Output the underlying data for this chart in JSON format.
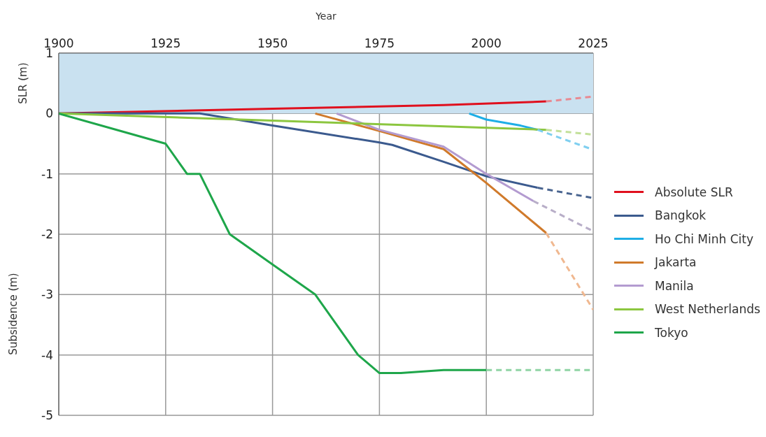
{
  "chart_data": {
    "type": "line",
    "xlabel": "Year",
    "ylabel": "Subsidence (m)",
    "xlim": [
      1900,
      2025
    ],
    "xticks": [
      1900,
      1925,
      1950,
      1975,
      2000,
      2025
    ],
    "ylim": [
      -5,
      1
    ],
    "yticks": [
      -5,
      -4,
      -3,
      -2,
      -1,
      0,
      1
    ],
    "grid": true,
    "legend": "right",
    "line_style": "solid",
    "bands": [
      {
        "axis": "y",
        "from": 0,
        "to": 1,
        "label": "SLR (m)",
        "color": "#c9e1f0"
      }
    ],
    "series": [
      {
        "name": "Absolute SLR",
        "color": "#e0101e",
        "x": [
          1900,
          1950,
          1990,
          2014
        ],
        "values": [
          0,
          0.08,
          0.14,
          0.2
        ]
      },
      {
        "name": "Bangkok",
        "color": "#3b5a8e",
        "x": [
          1900,
          1933,
          1950,
          1975,
          1978,
          1990,
          2000,
          2012
        ],
        "values": [
          0,
          0,
          -0.2,
          -0.48,
          -0.52,
          -0.8,
          -1.04,
          -1.23
        ]
      },
      {
        "name": "Ho Chi Minh City",
        "color": "#1eaee6",
        "x": [
          1996,
          2000,
          2008,
          2012
        ],
        "values": [
          0,
          -0.1,
          -0.2,
          -0.27
        ]
      },
      {
        "name": "Jakarta",
        "color": "#d07a2b",
        "x": [
          1960,
          1975,
          1990,
          2000,
          2014
        ],
        "values": [
          0,
          -0.29,
          -0.59,
          -1.15,
          -1.98
        ]
      },
      {
        "name": "Manila",
        "color": "#b39bd0",
        "x": [
          1965,
          1975,
          1990,
          2000,
          2011
        ],
        "values": [
          0,
          -0.27,
          -0.55,
          -1.0,
          -1.45
        ]
      },
      {
        "name": "West Netherlands",
        "color": "#8cc63f",
        "x": [
          1900,
          2014
        ],
        "values": [
          0,
          -0.27
        ]
      },
      {
        "name": "Tokyo",
        "color": "#1ea64a",
        "x": [
          1900,
          1915,
          1925,
          1930,
          1933,
          1940,
          1950,
          1960,
          1970,
          1975,
          1980,
          1990,
          2000
        ],
        "values": [
          0,
          -0.3,
          -0.5,
          -1.0,
          -1.0,
          -2.0,
          -2.5,
          -3.0,
          -4.0,
          -4.3,
          -4.3,
          -4.25,
          -4.25
        ]
      },
      {
        "color": "#e88a92",
        "line_style": "dashed",
        "x": [
          2014,
          2025
        ],
        "values": [
          0.2,
          0.28
        ]
      },
      {
        "color": "#4a6590",
        "line_style": "dashed",
        "x": [
          2012,
          2025
        ],
        "values": [
          -1.23,
          -1.4
        ]
      },
      {
        "color": "#7fcff0",
        "line_style": "dashed",
        "x": [
          2012,
          2025
        ],
        "values": [
          -0.27,
          -0.6
        ]
      },
      {
        "color": "#f0b890",
        "line_style": "dashed",
        "x": [
          2014,
          2025
        ],
        "values": [
          -1.98,
          -3.25
        ]
      },
      {
        "color": "#b8aec8",
        "line_style": "dashed",
        "x": [
          2011,
          2025
        ],
        "values": [
          -1.45,
          -1.95
        ]
      },
      {
        "color": "#c3e09a",
        "line_style": "dashed",
        "x": [
          2014,
          2025
        ],
        "values": [
          -0.27,
          -0.35
        ]
      },
      {
        "color": "#8fd4a4",
        "line_style": "dashed",
        "x": [
          2000,
          2025
        ],
        "values": [
          -4.25,
          -4.25
        ]
      }
    ]
  }
}
